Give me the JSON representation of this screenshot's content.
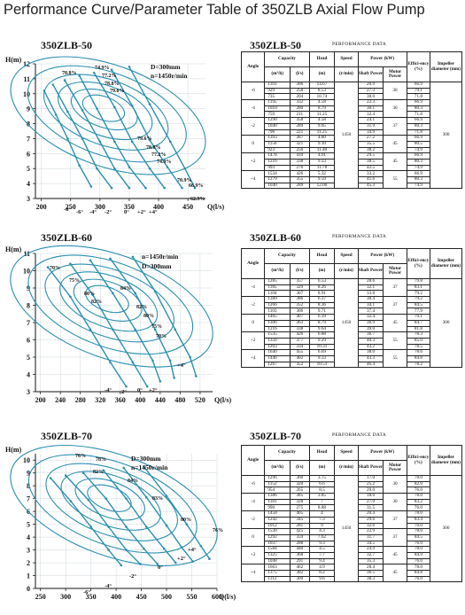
{
  "page_title": "Performance Curve/Parameter Table of 350ZLB Axial Flow Pump",
  "colors": {
    "curve": "#2a8fb0",
    "text": "#111111"
  },
  "chart_data": [
    {
      "type": "line",
      "title": "350ZLB-50",
      "ylabel": "H(m)",
      "xlabel": "Q(l/s)",
      "xlim": [
        190,
        480
      ],
      "ylim": [
        3,
        12
      ],
      "xticks": [
        200,
        250,
        300,
        350,
        400,
        450
      ],
      "yticks": [
        3,
        4,
        5,
        6,
        7,
        8,
        9,
        10,
        11,
        12
      ],
      "annotations": [
        "D=300mm",
        "n=1450r/min"
      ],
      "blade_angle_labels": [
        "-8°",
        "-6°",
        "-4°",
        "-2°",
        "0°",
        "+2°",
        "+4°"
      ],
      "efficiency_labels": [
        "70.8%",
        "74.9%",
        "77.2%",
        "78.8%",
        "79.6%",
        "79.6%",
        "78.8%",
        "77.2%",
        "74.9%",
        "70.9%",
        "66.9%",
        "62.9%"
      ],
      "series": [
        {
          "name": "-8°",
          "x": [
            205,
            225,
            245,
            265,
            285
          ],
          "y": [
            10.2,
            8.6,
            7.0,
            5.2,
            3.8
          ]
        },
        {
          "name": "-6°",
          "x": [
            220,
            245,
            270,
            295,
            320
          ],
          "y": [
            10.6,
            8.8,
            7.0,
            5.0,
            3.7
          ]
        },
        {
          "name": "-4°",
          "x": [
            240,
            270,
            300,
            325,
            350
          ],
          "y": [
            10.9,
            8.9,
            6.8,
            5.0,
            3.7
          ]
        },
        {
          "name": "-2°",
          "x": [
            265,
            295,
            325,
            350,
            378
          ],
          "y": [
            11.2,
            9.0,
            6.8,
            5.1,
            3.7
          ]
        },
        {
          "name": "0°",
          "x": [
            290,
            325,
            355,
            385,
            410
          ],
          "y": [
            11.4,
            9.1,
            6.8,
            5.0,
            3.7
          ]
        },
        {
          "name": "+2°",
          "x": [
            320,
            355,
            385,
            415,
            440
          ],
          "y": [
            11.6,
            9.2,
            6.9,
            5.1,
            3.7
          ]
        },
        {
          "name": "+4°",
          "x": [
            350,
            385,
            420,
            445,
            462
          ],
          "y": [
            11.8,
            9.3,
            6.8,
            5.0,
            3.7
          ]
        }
      ]
    },
    {
      "type": "line",
      "title": "350ZLB-60",
      "ylabel": "H(m)",
      "xlabel": "Q(l/s)",
      "xlim": [
        190,
        545
      ],
      "ylim": [
        3,
        11
      ],
      "xticks": [
        200,
        240,
        280,
        320,
        360,
        400,
        440,
        480,
        520
      ],
      "yticks": [
        3,
        4,
        5,
        6,
        7,
        8,
        9,
        10,
        11
      ],
      "annotations": [
        "n=1450r/min",
        "D=300mm"
      ],
      "blade_angle_labels": [
        "-4°",
        "-2°",
        "0°",
        "+2°",
        "+4°"
      ],
      "efficiency_labels": [
        "70%",
        "75%",
        "80%",
        "82%",
        "84%",
        "82%",
        "80%",
        "75%",
        "70%"
      ],
      "series": [
        {
          "name": "-4°",
          "x": [
            215,
            260,
            300,
            340,
            372
          ],
          "y": [
            10.2,
            8.5,
            6.6,
            4.7,
            3.3
          ]
        },
        {
          "name": "-2°",
          "x": [
            260,
            305,
            345,
            385,
            414
          ],
          "y": [
            10.4,
            8.6,
            6.6,
            4.7,
            3.3
          ]
        },
        {
          "name": "0°",
          "x": [
            300,
            345,
            390,
            425,
            440
          ],
          "y": [
            10.6,
            8.7,
            6.6,
            4.8,
            3.6
          ]
        },
        {
          "name": "+2°",
          "x": [
            340,
            390,
            430,
            460,
            468
          ],
          "y": [
            10.7,
            8.7,
            6.6,
            4.8,
            3.8
          ]
        },
        {
          "name": "+4°",
          "x": [
            385,
            430,
            470,
            500,
            512
          ],
          "y": [
            10.8,
            8.8,
            6.6,
            5.0,
            3.9
          ]
        }
      ]
    },
    {
      "type": "line",
      "title": "350ZLB-70",
      "ylabel": "H(m)",
      "xlabel": "Q(l/s)",
      "xlim": [
        240,
        600
      ],
      "ylim": [
        0,
        10.5
      ],
      "xticks": [
        250,
        300,
        350,
        400,
        450,
        500,
        550,
        600
      ],
      "yticks": [
        0,
        1,
        2,
        3,
        4,
        5,
        6,
        7,
        8,
        9,
        10
      ],
      "annotations": [
        "D=300mm",
        "n=1450r/min"
      ],
      "blade_angle_labels": [
        "-6°",
        "-4°",
        "-2°",
        "0°",
        "+2°",
        "+4°"
      ],
      "efficiency_labels": [
        "76%",
        "78%",
        "82%",
        "84%",
        "83%",
        "80%",
        "76%"
      ],
      "series": [
        {
          "name": "-6°",
          "x": [
            270,
            310,
            350,
            385,
            410
          ],
          "y": [
            8.6,
            6.8,
            4.8,
            3.0,
            1.8
          ]
        },
        {
          "name": "-4°",
          "x": [
            300,
            345,
            385,
            420,
            448
          ],
          "y": [
            8.8,
            6.9,
            4.8,
            3.0,
            1.9
          ]
        },
        {
          "name": "-2°",
          "x": [
            335,
            380,
            420,
            455,
            482
          ],
          "y": [
            9.0,
            7.0,
            4.8,
            3.1,
            1.9
          ]
        },
        {
          "name": "0°",
          "x": [
            375,
            420,
            460,
            495,
            518
          ],
          "y": [
            9.2,
            7.0,
            4.8,
            3.1,
            2.0
          ]
        },
        {
          "name": "+2°",
          "x": [
            415,
            460,
            500,
            530,
            552
          ],
          "y": [
            9.4,
            7.1,
            4.9,
            3.2,
            2.1
          ]
        },
        {
          "name": "+4°",
          "x": [
            455,
            500,
            540,
            568,
            585
          ],
          "y": [
            9.5,
            7.2,
            5.0,
            3.3,
            2.3
          ]
        }
      ]
    }
  ],
  "tables": [
    {
      "model": "350ZLB-50",
      "perf_label": "PERFORMANCE DATA",
      "h_capacity": "Capacity",
      "h_head": "Head",
      "h_speed": "Speed",
      "h_power": "Power (kW)",
      "h_eff": "Effici-ency (%)",
      "h_imp": "Impeller diameter (mm)",
      "h_angle": "Angle",
      "h_m3h": "(m³/h)",
      "h_ls": "(l/s)",
      "h_m": "(m)",
      "h_rmin": "(r/min)",
      "h_shaft": "Shaft Power",
      "h_motor": "Motor Power",
      "speed": "1450",
      "impeller": "300",
      "groups": [
        {
          "angle": "-6",
          "motor": "30",
          "rows": [
            [
              "1101",
              "306",
              "14.67",
              "20.9",
              "66.9"
            ],
            [
              "929",
              "258",
              "8.53",
              "27.3",
              "79.1"
            ],
            [
              "735",
              "204",
              "10.74",
              "30.0",
              "71.8"
            ]
          ]
        },
        {
          "angle": "-4",
          "motor": "30",
          "rows": [
            [
              "1195",
              "332",
              "4.58",
              "22.3",
              "66.9"
            ],
            [
              "1010",
              "280",
              "8.79",
              "30.1",
              "80.3"
            ],
            [
              "759",
              "211",
              "11.25",
              "32.4",
              "71.8"
            ]
          ]
        },
        {
          "angle": "-2",
          "motor": "37",
          "rows": [
            [
              "1290",
              "358",
              "4.58",
              "24.1",
              "66.9"
            ],
            [
              "1040",
              "289",
              "9.05",
              "31.9",
              "80.3"
            ],
            [
              "796",
              "221",
              "11.25",
              "34.9",
              "71.8"
            ]
          ]
        },
        {
          "angle": "0",
          "motor": "45",
          "rows": [
            [
              "1393",
              "387",
              "4.80",
              "27.2",
              "66.9"
            ],
            [
              "1156",
              "321",
              "9.10",
              "35.5",
              "80.5"
            ],
            [
              "923",
              "256",
              "11.40",
              "38.2",
              "74.9"
            ]
          ]
        },
        {
          "angle": "+2",
          "motor": "45",
          "rows": [
            [
              "1478",
              "410",
              "4.91",
              "29.5",
              "66.9"
            ],
            [
              "1216",
              "338",
              "9.33",
              "38.5",
              "80.3"
            ],
            [
              "993",
              "276",
              "11.78",
              "42.5",
              "74.9"
            ]
          ]
        },
        {
          "angle": "+4",
          "motor": "55",
          "rows": [
            [
              "1534",
              "426",
              "5.32",
              "33.2",
              "66.9"
            ],
            [
              "1279",
              "355",
              "9.59",
              "41.6",
              "80.3"
            ],
            [
              "1040",
              "289",
              "12.00",
              "45.3",
              "74.9"
            ]
          ]
        }
      ]
    },
    {
      "model": "350ZLB-60",
      "perf_label": "PERFORMANCE DATA",
      "h_capacity": "Capacity",
      "h_head": "Head",
      "h_speed": "Speed",
      "h_power": "Power (kW)",
      "h_eff": "Effici-ency (%)",
      "h_imp": "Impeller diameter (mm)",
      "h_angle": "Angle",
      "h_m3h": "(m³/h)",
      "h_ls": "(l/s)",
      "h_m": "(m)",
      "h_rmin": "(r/min)",
      "h_shaft": "Shaft Power",
      "h_motor": "Motor Power",
      "speed": "1450",
      "impeller": "300",
      "groups": [
        {
          "angle": "-4",
          "motor": "37",
          "rows": [
            [
              "1285",
              "357",
              "6.53",
              "28.6",
              "79.8"
            ],
            [
              "1185",
              "329",
              "8.26",
              "32.1",
              "83.1"
            ],
            [
              "1104",
              "307",
              "8.91",
              "33.8",
              "79.2"
            ]
          ]
        },
        {
          "angle": "-2",
          "motor": "37",
          "rows": [
            [
              "1389",
              "386",
              "6.37",
              "30.4",
              "79.2"
            ],
            [
              "1266",
              "352",
              "8.36",
              "34.1",
              "84.5"
            ],
            [
              "1103",
              "306",
              "9.71",
              "37.4",
              "77.9"
            ]
          ]
        },
        {
          "angle": "0",
          "motor": "45",
          "rows": [
            [
              "1465",
              "407",
              "6.39",
              "32.4",
              "79.1"
            ],
            [
              "1306",
              "363",
              "8.79",
              "36.9",
              "84.7"
            ],
            [
              "1216",
              "338",
              "9.64",
              "39.0",
              "81.8"
            ]
          ]
        },
        {
          "angle": "+2",
          "motor": "55",
          "rows": [
            [
              "1535",
              "426",
              "6.88",
              "36.7",
              "78.3"
            ],
            [
              "1356",
              "377",
              "9.29",
              "40.3",
              "85.0"
            ],
            [
              "1203",
              "334",
              "10.31",
              "43.2",
              "78.5"
            ]
          ]
        },
        {
          "angle": "+4",
          "motor": "55",
          "rows": [
            [
              "1640",
              "455",
              "6.69",
              "38.0",
              "78.6"
            ],
            [
              "1446",
              "402",
              "9.33",
              "43.3",
              "84.8"
            ],
            [
              "1267",
              "352",
              "10.51",
              "46.4",
              "78.2"
            ]
          ]
        }
      ]
    },
    {
      "model": "350ZLB-70",
      "perf_label": "PERFORMANCE DATA",
      "h_capacity": "Capacity",
      "h_head": "Head",
      "h_speed": "Speed",
      "h_power": "Power (kW)",
      "h_eff": "Effici-ency (%)",
      "h_imp": "Impeller diameter (mm)",
      "h_angle": "Angle",
      "h_m3h": "(m³/h)",
      "h_ls": "(l/s)",
      "h_m": "(m)",
      "h_rmin": "(r/min)",
      "h_shaft": "Shaft Power",
      "h_motor": "Motor Power",
      "speed": "1450",
      "impeller": "300",
      "groups": [
        {
          "angle": "-6",
          "motor": "30",
          "rows": [
            [
              "1296",
              "360",
              "3.75",
              "17.0",
              "78.0"
            ],
            [
              "1152",
              "320",
              "6.6",
              "25.2",
              "82.0"
            ],
            [
              "954",
              "265",
              "8.5",
              "29.0",
              "76.0"
            ]
          ]
        },
        {
          "angle": "-4",
          "motor": "30",
          "rows": [
            [
              "1386",
              "385",
              "3.85",
              "18.6",
              "78.0"
            ],
            [
              "1181",
              "328",
              "7",
              "27.0",
              "83.2"
            ],
            [
              "990",
              "275",
              "8.88",
              "31.5",
              "76.0"
            ]
          ]
        },
        {
          "angle": "-2",
          "motor": "37",
          "rows": [
            [
              "1458",
              "405",
              "4",
              "20.4",
              "78.0"
            ],
            [
              "1242",
              "345",
              "7.3",
              "29.6",
              "83.4"
            ],
            [
              "1012",
              "281",
              "9",
              "32.6",
              "76.0"
            ]
          ]
        },
        {
          "angle": "0",
          "motor": "37",
          "rows": [
            [
              "1530",
              "425",
              "4.3",
              "22.9",
              "78.0"
            ],
            [
              "1292",
              "359",
              "7.62",
              "31.7",
              "84.5"
            ],
            [
              "1037",
              "288",
              "9.3",
              "34.5",
              "76.0"
            ]
          ]
        },
        {
          "angle": "+2",
          "motor": "45",
          "rows": [
            [
              "1584",
              "440",
              "4.5",
              "24.9",
              "78.0"
            ],
            [
              "1325",
              "368",
              "7.7",
              "32.7",
              "84.9"
            ],
            [
              "1048",
              "291",
              "9.4",
              "35.3",
              "76.0"
            ]
          ]
        },
        {
          "angle": "+4",
          "motor": "45",
          "rows": [
            [
              "1663",
              "462",
              "4.9",
              "28.4",
              "78.0"
            ],
            [
              "1375",
              "382",
              "8.2",
              "36.5",
              "84.8"
            ],
            [
              "1112",
              "309",
              "9.6",
              "38.3",
              "76.0"
            ]
          ]
        }
      ]
    }
  ]
}
